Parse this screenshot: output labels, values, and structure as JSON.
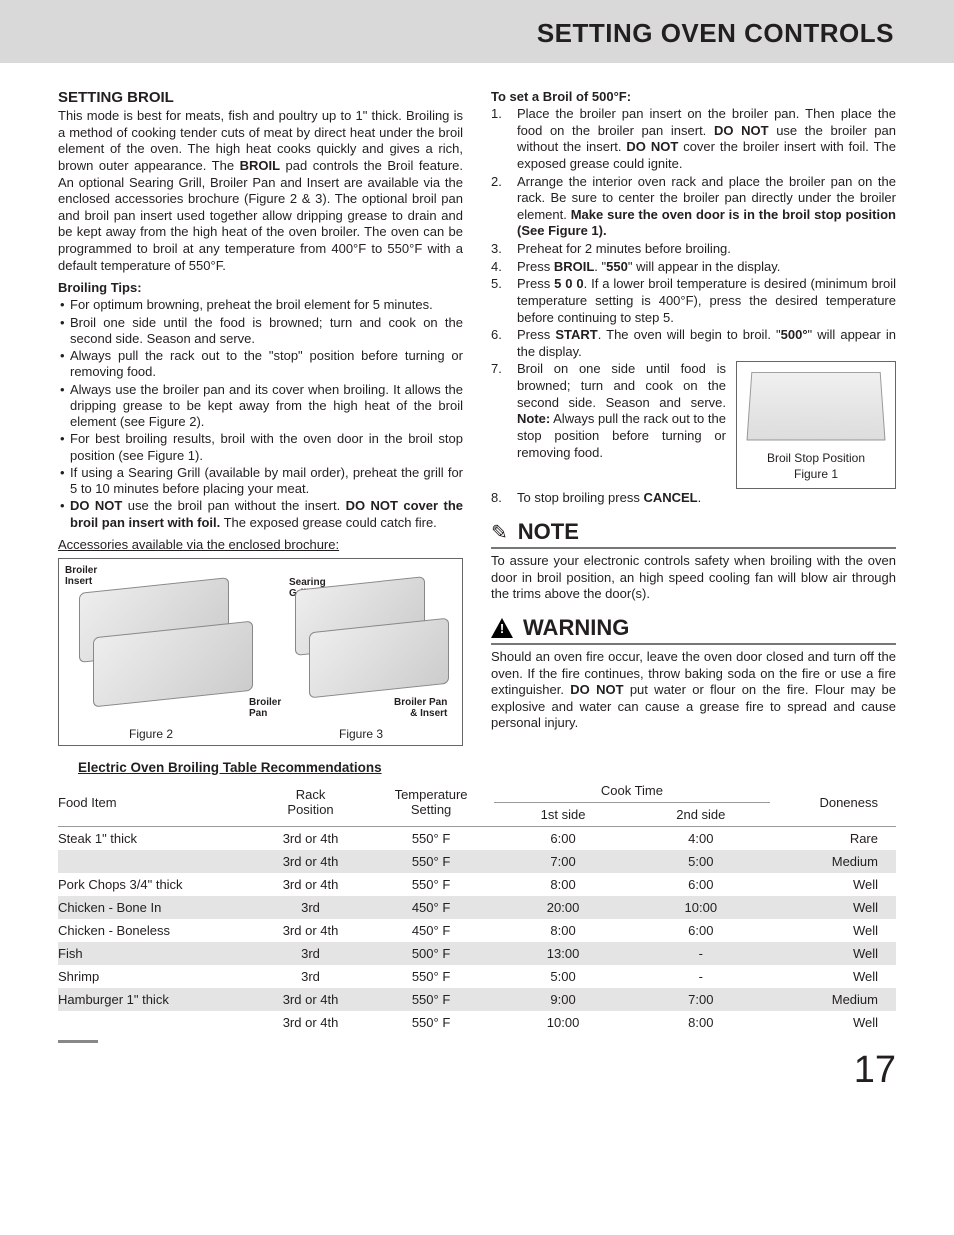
{
  "header": {
    "title": "SETTING OVEN CONTROLS"
  },
  "left": {
    "heading": "SETTING BROIL",
    "tips_heading": "Broiling Tips:",
    "accessories_line": "Accessories available via the enclosed brochure:",
    "tips": [
      "For optimum browning, preheat the broil element for 5 minutes.",
      "Broil one side until the food is browned; turn and cook on the second side. Season and serve.",
      "Always pull the rack out to the \"stop\" position before turning or removing food.",
      "Always use the broiler pan and its cover when broiling. It allows the dripping grease to be kept away from the high heat of the broil element (see Figure 2).",
      "For best broiling results, broil with the oven door in the broil stop position (see Figure 1).",
      "If using a Searing Grill (available by mail order), preheat the grill for 5 to 10 minutes before placing your meat."
    ],
    "figure_labels": {
      "broiler_insert": "Broiler\nInsert",
      "searing_grill": "Searing\nGrill",
      "broiler_pan": "Broiler\nPan",
      "broiler_pan_insert": "Broiler Pan\n& Insert",
      "fig2": "Figure 2",
      "fig3": "Figure 3"
    }
  },
  "right": {
    "set_heading": "To set a Broil of 500°F:",
    "fig1_line1": "Broil Stop Position",
    "fig1_line2": "Figure 1",
    "note_title": "NOTE",
    "note_body": "To assure your electronic controls safety when broiling with the oven door in broil position, an high speed cooling fan will blow air through the trims above the door(s).",
    "warning_title": "WARNING"
  },
  "table": {
    "title": "Electric Oven Broiling Table Recommendations",
    "headers": {
      "food": "Food Item",
      "rack": "Rack\nPosition",
      "temp": "Temperature\nSetting",
      "cook": "Cook Time",
      "side1": "1st side",
      "side2": "2nd side",
      "done": "Doneness"
    },
    "rows": [
      {
        "food": "Steak 1\" thick",
        "rack": "3rd or 4th",
        "temp": "550° F",
        "s1": "6:00",
        "s2": "4:00",
        "done": "Rare",
        "shade": false
      },
      {
        "food": "",
        "rack": "3rd or 4th",
        "temp": "550° F",
        "s1": "7:00",
        "s2": "5:00",
        "done": "Medium",
        "shade": true
      },
      {
        "food": "Pork Chops 3/4\" thick",
        "rack": "3rd or 4th",
        "temp": "550° F",
        "s1": "8:00",
        "s2": "6:00",
        "done": "Well",
        "shade": false
      },
      {
        "food": "Chicken - Bone In",
        "rack": "3rd",
        "temp": "450° F",
        "s1": "20:00",
        "s2": "10:00",
        "done": "Well",
        "shade": true
      },
      {
        "food": "Chicken - Boneless",
        "rack": "3rd or 4th",
        "temp": "450° F",
        "s1": "8:00",
        "s2": "6:00",
        "done": "Well",
        "shade": false
      },
      {
        "food": "Fish",
        "rack": "3rd",
        "temp": "500° F",
        "s1": "13:00",
        "s2": "-",
        "done": "Well",
        "shade": true
      },
      {
        "food": "Shrimp",
        "rack": "3rd",
        "temp": "550° F",
        "s1": "5:00",
        "s2": "-",
        "done": "Well",
        "shade": false
      },
      {
        "food": "Hamburger 1\" thick",
        "rack": "3rd or 4th",
        "temp": "550° F",
        "s1": "9:00",
        "s2": "7:00",
        "done": "Medium",
        "shade": true
      },
      {
        "food": "",
        "rack": "3rd or 4th",
        "temp": "550° F",
        "s1": "10:00",
        "s2": "8:00",
        "done": "Well",
        "shade": false
      }
    ]
  },
  "page_number": "17",
  "colors": {
    "header_bg": "#d9d9d9",
    "text": "#231f20",
    "table_shade": "#e4e4e4",
    "rule": "#888888"
  }
}
